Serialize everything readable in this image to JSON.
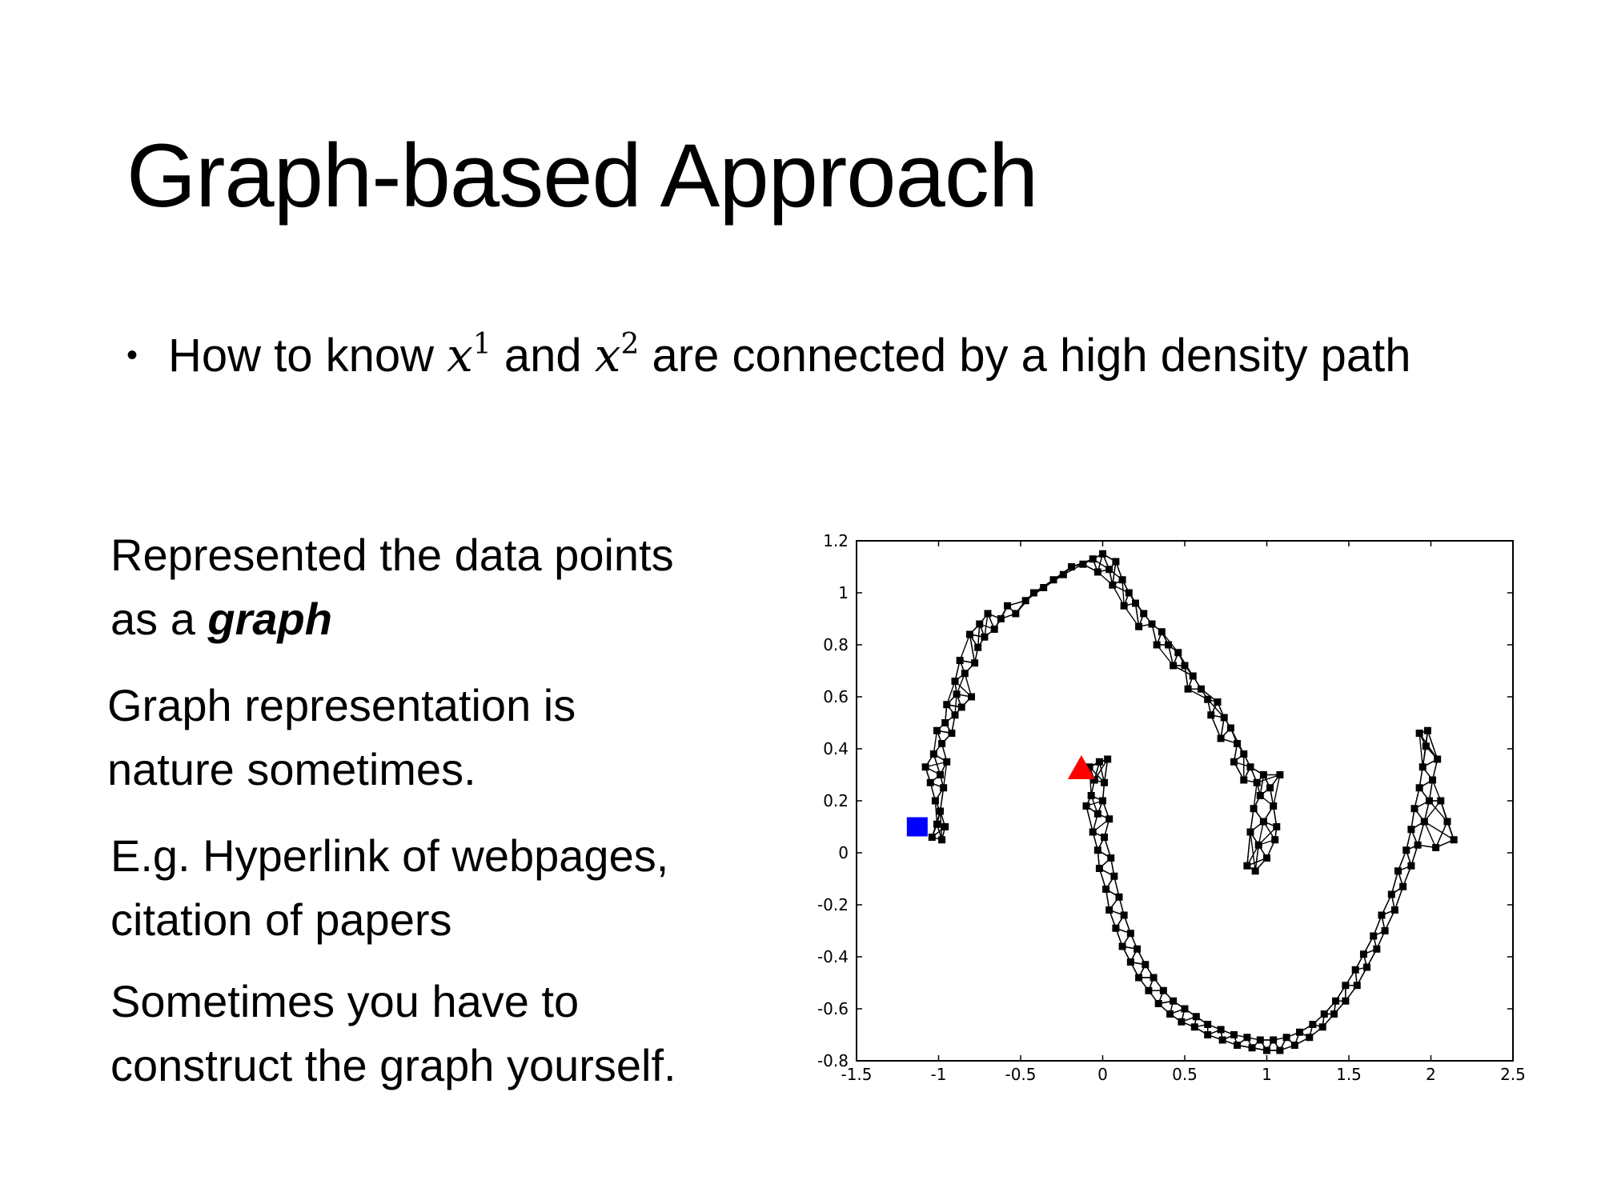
{
  "slide": {
    "title": "Graph-based Approach",
    "bullet": {
      "before": "How to know ",
      "var": "x",
      "sup1": "1",
      "middle": " and ",
      "sup2": "2",
      "after": " are connected by a high density path"
    },
    "paragraphs": [
      {
        "line1": "Represented the data points",
        "line2_prefix": "as a ",
        "line2_emph": "graph"
      },
      {
        "line1": "Graph representation is",
        "line2": "nature sometimes."
      },
      {
        "line1": "E.g. Hyperlink of webpages,",
        "line2": "citation of papers"
      },
      {
        "line1": "Sometimes you have to",
        "line2": "construct the graph yourself."
      }
    ]
  },
  "chart_data": {
    "type": "scatter",
    "title": "",
    "xlabel": "",
    "ylabel": "",
    "xlim": [
      -1.5,
      2.5
    ],
    "ylim": [
      -0.8,
      1.2
    ],
    "xticks": [
      "-1.5",
      "-1",
      "-0.5",
      "0",
      "0.5",
      "1",
      "1.5",
      "2",
      "2.5"
    ],
    "xtick_values": [
      -1.5,
      -1,
      -0.5,
      0,
      0.5,
      1,
      1.5,
      2,
      2.5
    ],
    "yticks": [
      "1.2",
      "1",
      "0.8",
      "0.6",
      "0.4",
      "0.2",
      "0",
      "-0.2",
      "-0.4",
      "-0.6",
      "-0.8"
    ],
    "ytick_values": [
      1.2,
      1,
      0.8,
      0.6,
      0.4,
      0.2,
      0,
      -0.2,
      -0.4,
      -0.6,
      -0.8
    ],
    "grid": false,
    "colors": {
      "nodes": "#000000",
      "edges": "#000000",
      "labeled_square": "#0000ff",
      "labeled_triangle": "#ff0000"
    },
    "labeled_points": [
      {
        "marker": "square",
        "color": "#0000ff",
        "x": -1.13,
        "y": 0.1
      },
      {
        "marker": "triangle",
        "color": "#ff0000",
        "x": -0.13,
        "y": 0.32
      }
    ],
    "series": [
      {
        "points": [
          [
            -1.04,
            0.06
          ],
          [
            -0.98,
            0.05
          ],
          [
            -1.01,
            0.11
          ],
          [
            -0.96,
            0.1
          ],
          [
            -0.99,
            0.16
          ],
          [
            -1.02,
            0.2
          ],
          [
            -0.97,
            0.25
          ],
          [
            -1.05,
            0.27
          ],
          [
            -0.99,
            0.3
          ],
          [
            -1.08,
            0.33
          ],
          [
            -0.95,
            0.35
          ],
          [
            -1.03,
            0.38
          ],
          [
            -0.98,
            0.42
          ],
          [
            -1.01,
            0.47
          ],
          [
            -0.92,
            0.46
          ],
          [
            -0.96,
            0.5
          ],
          [
            -0.9,
            0.53
          ],
          [
            -0.95,
            0.57
          ],
          [
            -0.86,
            0.56
          ],
          [
            -0.89,
            0.61
          ],
          [
            -0.8,
            0.6
          ],
          [
            -0.9,
            0.66
          ],
          [
            -0.84,
            0.69
          ],
          [
            -0.78,
            0.73
          ],
          [
            -0.87,
            0.74
          ],
          [
            -0.76,
            0.79
          ],
          [
            -0.81,
            0.84
          ],
          [
            -0.72,
            0.83
          ],
          [
            -0.75,
            0.88
          ],
          [
            -0.66,
            0.86
          ],
          [
            -0.7,
            0.92
          ],
          [
            -0.62,
            0.9
          ],
          [
            -0.58,
            0.95
          ],
          [
            -0.53,
            0.92
          ],
          [
            -0.47,
            0.97
          ],
          [
            -0.42,
            1.0
          ],
          [
            -0.36,
            1.02
          ],
          [
            -0.3,
            1.05
          ],
          [
            -0.24,
            1.07
          ],
          [
            -0.19,
            1.1
          ],
          [
            -0.12,
            1.11
          ],
          [
            -0.06,
            1.13
          ],
          [
            0.0,
            1.15
          ],
          [
            -0.03,
            1.08
          ],
          [
            0.04,
            1.09
          ],
          [
            0.08,
            1.12
          ],
          [
            0.06,
            1.03
          ],
          [
            0.12,
            1.05
          ],
          [
            0.16,
            1.0
          ],
          [
            0.13,
            0.95
          ],
          [
            0.2,
            0.96
          ],
          [
            0.25,
            0.92
          ],
          [
            0.22,
            0.87
          ],
          [
            0.3,
            0.88
          ],
          [
            0.36,
            0.85
          ],
          [
            0.33,
            0.8
          ],
          [
            0.4,
            0.8
          ],
          [
            0.46,
            0.77
          ],
          [
            0.43,
            0.72
          ],
          [
            0.5,
            0.72
          ],
          [
            0.55,
            0.68
          ],
          [
            0.52,
            0.63
          ],
          [
            0.6,
            0.63
          ],
          [
            0.64,
            0.59
          ],
          [
            0.7,
            0.58
          ],
          [
            0.66,
            0.53
          ],
          [
            0.74,
            0.52
          ],
          [
            0.78,
            0.48
          ],
          [
            0.72,
            0.44
          ],
          [
            0.82,
            0.42
          ],
          [
            0.86,
            0.38
          ],
          [
            0.8,
            0.35
          ],
          [
            0.9,
            0.33
          ],
          [
            0.86,
            0.28
          ],
          [
            0.94,
            0.27
          ],
          [
            0.98,
            0.3
          ],
          [
            1.02,
            0.25
          ],
          [
            0.96,
            0.22
          ],
          [
            1.04,
            0.18
          ],
          [
            0.92,
            0.17
          ],
          [
            0.98,
            0.12
          ],
          [
            1.06,
            0.1
          ],
          [
            0.9,
            0.08
          ],
          [
            0.95,
            0.03
          ],
          [
            1.0,
            -0.02
          ],
          [
            0.93,
            -0.07
          ],
          [
            0.88,
            -0.05
          ],
          [
            1.08,
            0.3
          ],
          [
            1.05,
            0.05
          ]
        ]
      },
      {
        "points": [
          [
            -0.08,
            0.33
          ],
          [
            -0.02,
            0.35
          ],
          [
            0.03,
            0.36
          ],
          [
            -0.05,
            0.28
          ],
          [
            0.01,
            0.27
          ],
          [
            -0.07,
            0.22
          ],
          [
            0.0,
            0.2
          ],
          [
            -0.03,
            0.15
          ],
          [
            0.04,
            0.13
          ],
          [
            -0.06,
            0.08
          ],
          [
            0.01,
            0.06
          ],
          [
            -0.03,
            0.01
          ],
          [
            0.05,
            -0.02
          ],
          [
            -0.02,
            -0.06
          ],
          [
            0.07,
            -0.09
          ],
          [
            0.02,
            -0.14
          ],
          [
            0.1,
            -0.17
          ],
          [
            0.04,
            -0.22
          ],
          [
            0.13,
            -0.24
          ],
          [
            0.08,
            -0.29
          ],
          [
            0.17,
            -0.31
          ],
          [
            0.12,
            -0.36
          ],
          [
            0.21,
            -0.37
          ],
          [
            0.17,
            -0.42
          ],
          [
            0.26,
            -0.43
          ],
          [
            0.22,
            -0.48
          ],
          [
            0.31,
            -0.48
          ],
          [
            0.28,
            -0.53
          ],
          [
            0.37,
            -0.53
          ],
          [
            0.34,
            -0.58
          ],
          [
            0.43,
            -0.57
          ],
          [
            0.41,
            -0.62
          ],
          [
            0.5,
            -0.6
          ],
          [
            0.48,
            -0.65
          ],
          [
            0.57,
            -0.63
          ],
          [
            0.56,
            -0.67
          ],
          [
            0.64,
            -0.66
          ],
          [
            0.64,
            -0.7
          ],
          [
            0.72,
            -0.68
          ],
          [
            0.73,
            -0.72
          ],
          [
            0.8,
            -0.7
          ],
          [
            0.82,
            -0.74
          ],
          [
            0.88,
            -0.71
          ],
          [
            0.91,
            -0.75
          ],
          [
            0.96,
            -0.72
          ],
          [
            1.0,
            -0.76
          ],
          [
            1.04,
            -0.72
          ],
          [
            1.08,
            -0.76
          ],
          [
            1.12,
            -0.71
          ],
          [
            1.17,
            -0.74
          ],
          [
            1.2,
            -0.69
          ],
          [
            1.26,
            -0.71
          ],
          [
            1.28,
            -0.66
          ],
          [
            1.34,
            -0.67
          ],
          [
            1.35,
            -0.62
          ],
          [
            1.41,
            -0.62
          ],
          [
            1.42,
            -0.57
          ],
          [
            1.48,
            -0.57
          ],
          [
            1.48,
            -0.51
          ],
          [
            1.55,
            -0.51
          ],
          [
            1.54,
            -0.45
          ],
          [
            1.61,
            -0.44
          ],
          [
            1.59,
            -0.39
          ],
          [
            1.67,
            -0.37
          ],
          [
            1.65,
            -0.32
          ],
          [
            1.72,
            -0.3
          ],
          [
            1.7,
            -0.24
          ],
          [
            1.78,
            -0.22
          ],
          [
            1.76,
            -0.16
          ],
          [
            1.83,
            -0.13
          ],
          [
            1.8,
            -0.07
          ],
          [
            1.88,
            -0.05
          ],
          [
            1.85,
            0.01
          ],
          [
            1.92,
            0.03
          ],
          [
            1.88,
            0.09
          ],
          [
            1.96,
            0.12
          ],
          [
            1.9,
            0.17
          ],
          [
            1.99,
            0.2
          ],
          [
            1.93,
            0.25
          ],
          [
            2.01,
            0.28
          ],
          [
            1.95,
            0.33
          ],
          [
            2.04,
            0.36
          ],
          [
            1.97,
            0.41
          ],
          [
            1.93,
            0.46
          ],
          [
            2.06,
            0.2
          ],
          [
            2.1,
            0.12
          ],
          [
            2.14,
            0.05
          ],
          [
            2.03,
            0.02
          ],
          [
            1.98,
            0.47
          ],
          [
            -0.1,
            0.18
          ]
        ]
      }
    ]
  }
}
